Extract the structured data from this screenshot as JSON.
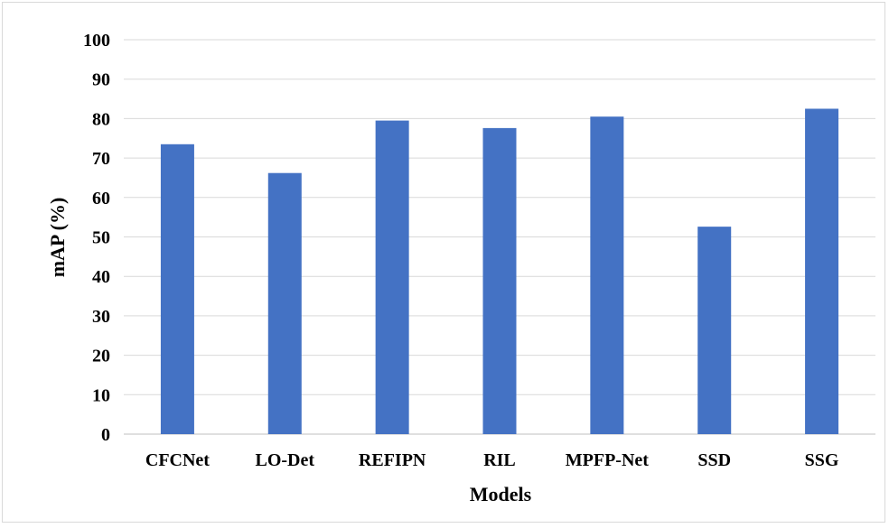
{
  "chart_data": {
    "type": "bar",
    "title": "",
    "xlabel": "Models",
    "ylabel": "mAP (%)",
    "categories": [
      "CFCNet",
      "LO-Det",
      "REFIPN",
      "RIL",
      "MPFP-Net",
      "SSD",
      "SSG"
    ],
    "series": [
      {
        "values": [
          73.5,
          66.2,
          79.5,
          77.6,
          80.5,
          52.6,
          82.5
        ]
      }
    ],
    "ylim": [
      0,
      100
    ],
    "yticks": [
      0,
      10,
      20,
      30,
      40,
      50,
      60,
      70,
      80,
      90,
      100
    ],
    "grid": true,
    "legend": "none",
    "colors": {
      "bar": "#4472C4",
      "grid": "#d9d9d9",
      "axis": "#bfbfbf"
    }
  }
}
